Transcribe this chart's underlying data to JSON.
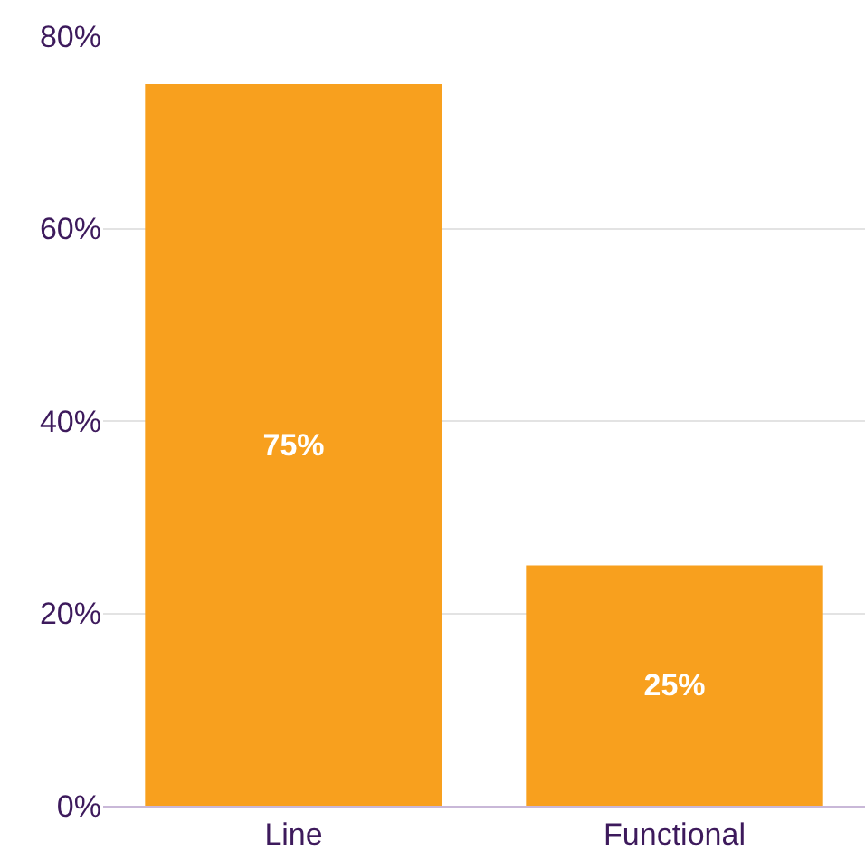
{
  "chart_data": {
    "type": "bar",
    "categories": [
      "Line",
      "Functional"
    ],
    "values": [
      75,
      25
    ],
    "color": "#f8a01e",
    "value_labels": [
      "75%",
      "25%"
    ],
    "ylim": [
      0,
      80
    ],
    "yticks": [
      {
        "value": 0,
        "label": "0%"
      },
      {
        "value": 20,
        "label": "20%"
      },
      {
        "value": 40,
        "label": "40%"
      },
      {
        "value": 60,
        "label": "60%"
      },
      {
        "value": 80,
        "label": "80%"
      }
    ],
    "grid": "y"
  }
}
